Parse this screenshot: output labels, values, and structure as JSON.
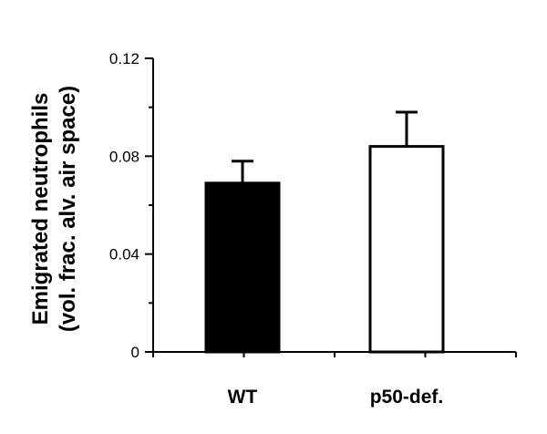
{
  "chart_data": {
    "type": "bar",
    "title": "",
    "xlabel": "",
    "ylabel_line1": "Emigrated neutrophils",
    "ylabel_line2": "(vol. frac. alv. air space)",
    "categories": [
      "WT",
      "p50-def."
    ],
    "values": [
      0.069,
      0.084
    ],
    "errors": [
      0.009,
      0.014
    ],
    "bar_colors": [
      "#000000",
      "#ffffff"
    ],
    "bar_stroke": "#000000",
    "ylim": [
      0,
      0.12
    ],
    "yticks": [
      0,
      0.04,
      0.08,
      0.12
    ],
    "ytick_labels": [
      "0",
      "0.04",
      "0.08",
      "0.12"
    ],
    "grid": false,
    "legend": "none"
  }
}
